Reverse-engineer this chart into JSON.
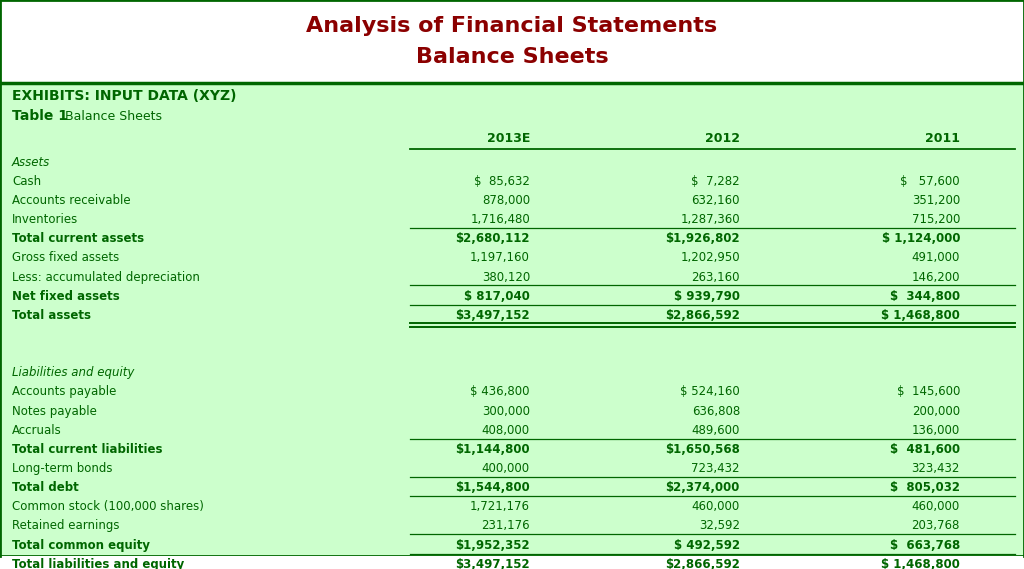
{
  "title_line1": "Analysis of Financial Statements",
  "title_line2": "Balance Sheets",
  "title_color": "#8B0000",
  "header_label": "EXHIBITS: INPUT DATA (XYZ)",
  "table_label": "Table 1",
  "table_sublabel": "Balance Sheets",
  "bg_color": "#ccffcc",
  "white_bg": "#ffffff",
  "green_text": "#006600",
  "dark_green_line": "#006600",
  "columns": [
    "",
    "2013E",
    "2012",
    "2011"
  ],
  "rows": [
    {
      "label": "Assets",
      "vals": [
        "",
        "",
        ""
      ],
      "bold": false,
      "italic": true,
      "dollar": false
    },
    {
      "label": "Cash",
      "vals": [
        "$  85,632",
        "$  7,282",
        "$   57,600"
      ],
      "bold": false,
      "italic": false
    },
    {
      "label": "Accounts receivable",
      "vals": [
        "878,000",
        "632,160",
        "351,200"
      ],
      "bold": false,
      "italic": false
    },
    {
      "label": "Inventories",
      "vals": [
        "1,716,480",
        "1,287,360",
        "715,200"
      ],
      "bold": false,
      "italic": false,
      "underline_below": true
    },
    {
      "label": "Total current assets",
      "vals": [
        "$2,680,112",
        "$1,926,802",
        "$ 1,124,000"
      ],
      "bold": true,
      "italic": false
    },
    {
      "label": "Gross fixed assets",
      "vals": [
        "1,197,160",
        "1,202,950",
        "491,000"
      ],
      "bold": false,
      "italic": false
    },
    {
      "label": "Less: accumulated depreciation",
      "vals": [
        "380,120",
        "263,160",
        "146,200"
      ],
      "bold": false,
      "italic": false,
      "underline_below": true
    },
    {
      "label": "Net fixed assets",
      "vals": [
        "$ 817,040",
        "$ 939,790",
        "$  344,800"
      ],
      "bold": true,
      "italic": false,
      "underline_below": true
    },
    {
      "label": "Total assets",
      "vals": [
        "$3,497,152",
        "$2,866,592",
        "$ 1,468,800"
      ],
      "bold": true,
      "italic": false,
      "double_underline_below": true
    },
    {
      "label": "",
      "vals": [
        "",
        "",
        ""
      ],
      "bold": false,
      "italic": false,
      "spacer": true
    },
    {
      "label": "",
      "vals": [
        "",
        "",
        ""
      ],
      "bold": false,
      "italic": false,
      "spacer": true
    },
    {
      "label": "Liabilities and equity",
      "vals": [
        "",
        "",
        ""
      ],
      "bold": false,
      "italic": true
    },
    {
      "label": "Accounts payable",
      "vals": [
        "$ 436,800",
        "$ 524,160",
        "$  145,600"
      ],
      "bold": false,
      "italic": false
    },
    {
      "label": "Notes payable",
      "vals": [
        "300,000",
        "636,808",
        "200,000"
      ],
      "bold": false,
      "italic": false
    },
    {
      "label": "Accruals",
      "vals": [
        "408,000",
        "489,600",
        "136,000"
      ],
      "bold": false,
      "italic": false,
      "underline_below": true
    },
    {
      "label": "Total current liabilities",
      "vals": [
        "$1,144,800",
        "$1,650,568",
        "$  481,600"
      ],
      "bold": true,
      "italic": false
    },
    {
      "label": "Long-term bonds",
      "vals": [
        "400,000",
        "723,432",
        "323,432"
      ],
      "bold": false,
      "italic": false,
      "underline_below": true
    },
    {
      "label": "Total debt",
      "vals": [
        "$1,544,800",
        "$2,374,000",
        "$  805,032"
      ],
      "bold": true,
      "italic": false,
      "underline_below": true
    },
    {
      "label": "Common stock (100,000 shares)",
      "vals": [
        "1,721,176",
        "460,000",
        "460,000"
      ],
      "bold": false,
      "italic": false
    },
    {
      "label": "Retained earnings",
      "vals": [
        "231,176",
        "32,592",
        "203,768"
      ],
      "bold": false,
      "italic": false,
      "underline_below": true
    },
    {
      "label": "Total common equity",
      "vals": [
        "$1,952,352",
        "$ 492,592",
        "$  663,768"
      ],
      "bold": true,
      "italic": false,
      "underline_below": true
    },
    {
      "label": "Total liabilities and equity",
      "vals": [
        "$3,497,152",
        "$2,866,592",
        "$ 1,468,800"
      ],
      "bold": true,
      "italic": false,
      "double_underline_below": true
    }
  ]
}
